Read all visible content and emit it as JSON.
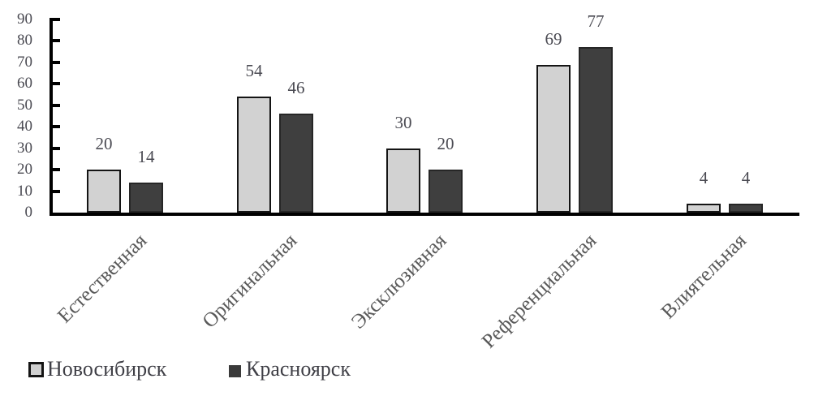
{
  "chart_data": {
    "type": "bar",
    "categories": [
      "Естественная",
      "Оригинальная",
      "Эксклюзивная",
      "Референциальная",
      "Влиятельная"
    ],
    "series": [
      {
        "name": "Новосибирск",
        "color": "#d2d2d2",
        "border_color": "#141414",
        "values": [
          20,
          54,
          30,
          69,
          4
        ]
      },
      {
        "name": "Красноярск",
        "color": "#3f3f3f",
        "border_color": "#262626",
        "values": [
          14,
          46,
          20,
          77,
          4
        ]
      }
    ],
    "title": "",
    "xlabel": "",
    "ylabel": "",
    "ylim": [
      0,
      90
    ],
    "yticks": [
      0,
      10,
      20,
      30,
      40,
      50,
      60,
      70,
      80,
      90
    ],
    "grid": false,
    "data_labels": true,
    "legend_position": "bottom-left",
    "axis_color": "#000000",
    "tick_label_color": "#4a4a52",
    "category_label_color": "#595959",
    "category_label_rotation_deg": -45
  }
}
